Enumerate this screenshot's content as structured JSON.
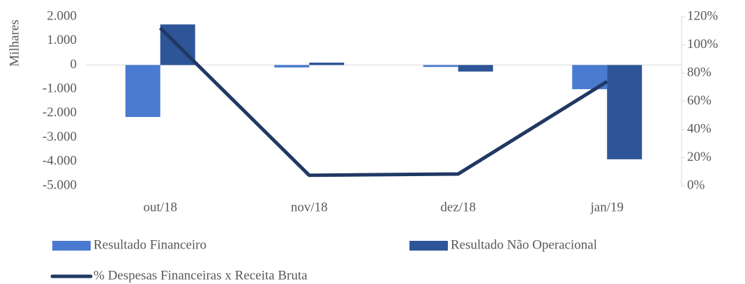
{
  "chart_data": {
    "type": "bar_line",
    "y_label": "Milhares",
    "categories": [
      "out/18",
      "nov/18",
      "dez/18",
      "jan/19"
    ],
    "series": [
      {
        "name": "Resultado Financeiro",
        "color": "#4a7bd0",
        "type": "bar",
        "values": [
          -2150,
          -100,
          -80,
          -1000
        ]
      },
      {
        "name": "Resultado Não Operacional",
        "color": "#2e5597",
        "type": "bar",
        "values": [
          1680,
          100,
          -270,
          -3900
        ]
      },
      {
        "name": "% Despesas Financeiras x Receita Bruta",
        "color": "#203864",
        "type": "line",
        "axis": "y2",
        "values": [
          112,
          7.5,
          8.4,
          74
        ]
      }
    ],
    "ylim": [
      -5000,
      2000
    ],
    "yticks": [
      {
        "value": 2000,
        "label": "2.000"
      },
      {
        "value": 1000,
        "label": "1.000"
      },
      0,
      {
        "value": -1000,
        "label": "-1.000"
      },
      {
        "value": -2000,
        "label": "-2.000"
      },
      {
        "value": -3000,
        "label": "-3.000"
      },
      {
        "value": -4000,
        "label": "-4.000"
      },
      {
        "value": -5000,
        "label": "-5.000"
      }
    ],
    "y2lim": [
      0,
      120
    ],
    "y2ticks": [
      {
        "value": 0,
        "label": "0%"
      },
      {
        "value": 20,
        "label": "20%"
      },
      {
        "value": 40,
        "label": "40%"
      },
      {
        "value": 60,
        "label": "60%"
      },
      {
        "value": 80,
        "label": "80%"
      },
      {
        "value": 100,
        "label": "100%"
      },
      {
        "value": 120,
        "label": "120%"
      }
    ],
    "grid": false
  }
}
